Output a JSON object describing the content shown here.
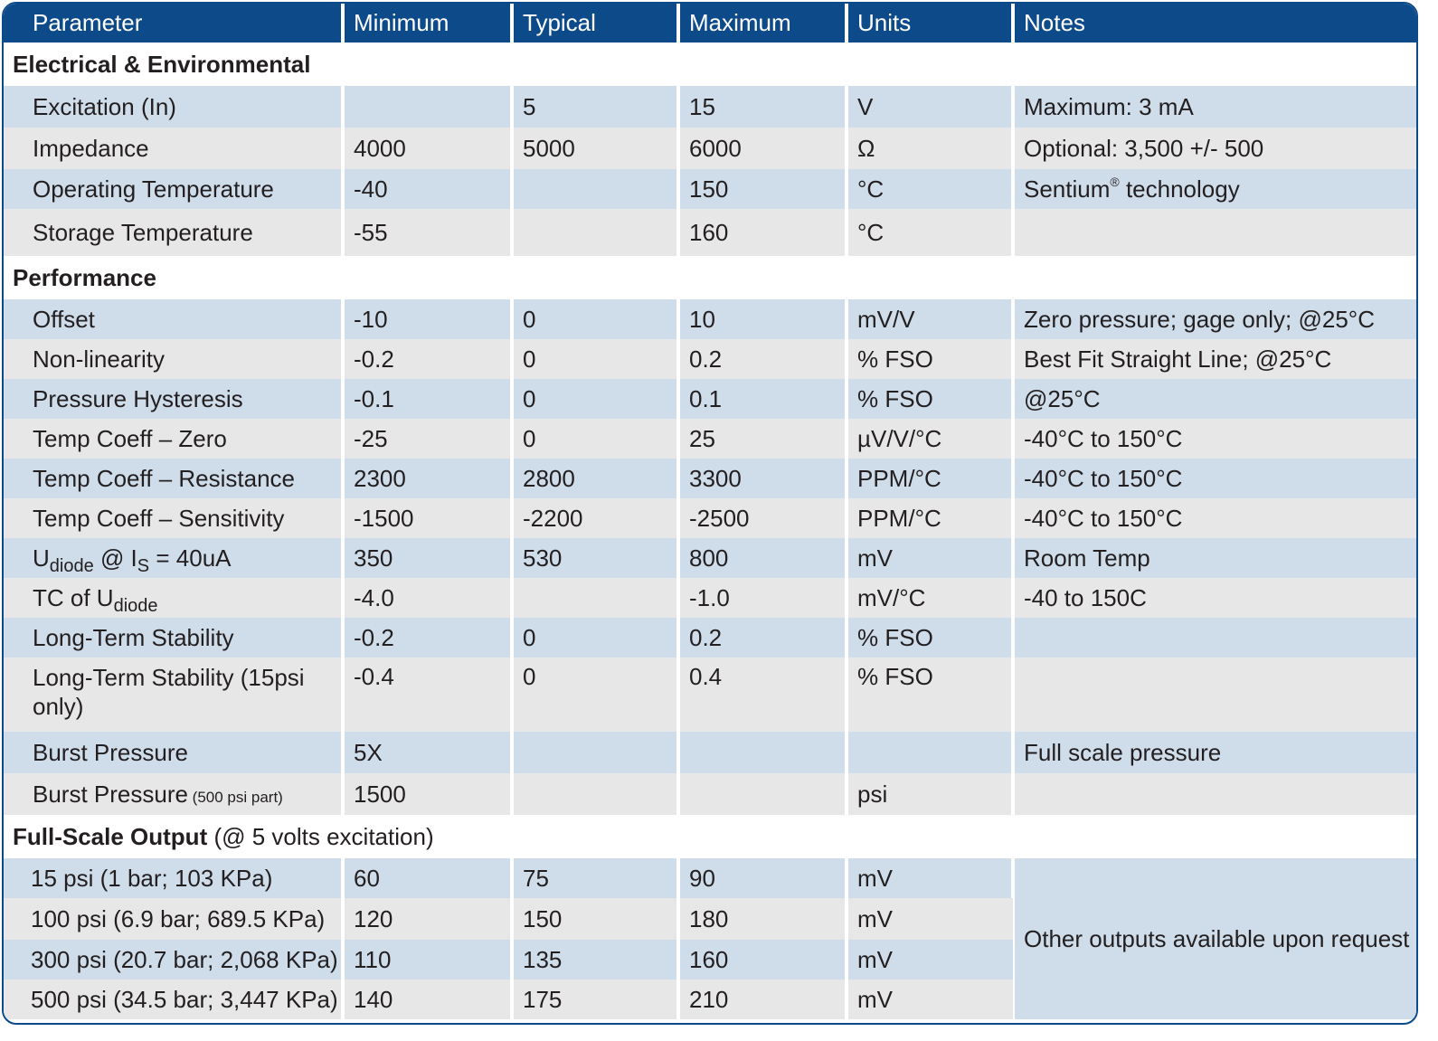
{
  "headers": [
    "Parameter",
    "Minimum",
    "Typical",
    "Maximum",
    "Units",
    "Notes"
  ],
  "sections": {
    "electrical": {
      "title": "Electrical & Environmental",
      "rows": [
        {
          "param": "Excitation (In)",
          "min": "",
          "typ": "5",
          "max": "15",
          "units": "V",
          "notes": "Maximum: 3 mA"
        },
        {
          "param": "Impedance",
          "min": "4000",
          "typ": "5000",
          "max": "6000",
          "units": "Ω",
          "notes": "Optional: 3,500 +/- 500"
        },
        {
          "param": "Operating Temperature",
          "min": "-40",
          "typ": "",
          "max": "150",
          "units": "°C",
          "notes_pre": "Sentium",
          "notes_sup": "®",
          "notes_post": " technology"
        },
        {
          "param": "Storage Temperature",
          "min": "-55",
          "typ": "",
          "max": "160",
          "units": "°C",
          "notes": ""
        }
      ]
    },
    "performance": {
      "title": "Performance",
      "rows": [
        {
          "param": "Offset",
          "min": "-10",
          "typ": "0",
          "max": "10",
          "units": "mV/V",
          "notes": "Zero pressure; gage only; @25°C"
        },
        {
          "param": "Non-linearity",
          "min": "-0.2",
          "typ": "0",
          "max": "0.2",
          "units": "% FSO",
          "notes": "Best Fit Straight Line; @25°C"
        },
        {
          "param": "Pressure Hysteresis",
          "min": "-0.1",
          "typ": "0",
          "max": "0.1",
          "units": "% FSO",
          "notes": "@25°C"
        },
        {
          "param": "Temp Coeff – Zero",
          "min": "-25",
          "typ": "0",
          "max": "25",
          "units": "µV/V/°C",
          "notes": "-40°C to 150°C"
        },
        {
          "param": "Temp Coeff – Resistance",
          "min": "2300",
          "typ": "2800",
          "max": "3300",
          "units": "PPM/°C",
          "notes": "-40°C to 150°C"
        },
        {
          "param": "Temp Coeff – Sensitivity",
          "min": "-1500",
          "typ": "-2200",
          "max": "-2500",
          "units": "PPM/°C",
          "notes": "-40°C to 150°C"
        },
        {
          "param_main": "U",
          "param_sub": "diode",
          "param_mid": " @ I",
          "param_sub2": "S",
          "param_end": " = 40uA",
          "min": "350",
          "typ": "530",
          "max": "800",
          "units": "mV",
          "notes": "Room Temp"
        },
        {
          "param_main": "TC of U",
          "param_sub": "diode",
          "min": "-4.0",
          "typ": "",
          "max": "-1.0",
          "units": "mV/°C",
          "notes": "-40 to 150C"
        },
        {
          "param": "Long-Term Stability",
          "min": "-0.2",
          "typ": "0",
          "max": "0.2",
          "units": "% FSO",
          "notes": ""
        },
        {
          "param": "Long-Term Stability (15psi only)",
          "min": "-0.4",
          "typ": "0",
          "max": "0.4",
          "units": "% FSO",
          "notes": ""
        },
        {
          "param": "Burst Pressure",
          "min": "5X",
          "typ": "",
          "max": "",
          "units": "",
          "notes": "Full scale pressure"
        },
        {
          "param": "Burst Pressure",
          "param_small": " (500 psi part)",
          "min": "1500",
          "typ": "",
          "max": "",
          "units": "psi",
          "notes": ""
        }
      ]
    },
    "fso": {
      "title": "Full-Scale Output",
      "title_note": " (@ 5 volts excitation)",
      "merged_note": "Other outputs available upon request",
      "rows": [
        {
          "param": "15 psi (1 bar; 103 KPa)",
          "min": "60",
          "typ": "75",
          "max": "90",
          "units": "mV"
        },
        {
          "param": "100 psi (6.9 bar; 689.5 KPa)",
          "min": "120",
          "typ": "150",
          "max": "180",
          "units": "mV"
        },
        {
          "param": "300 psi (20.7 bar; 2,068 KPa)",
          "min": "110",
          "typ": "135",
          "max": "160",
          "units": "mV"
        },
        {
          "param": "500 psi (34.5 bar; 3,447 KPa)",
          "min": "140",
          "typ": "175",
          "max": "210",
          "units": "mV"
        }
      ]
    }
  },
  "colors": {
    "header_bg": "#0d4a8a",
    "row_blue": "#cfdcea",
    "row_gray": "#e7e7e8"
  }
}
